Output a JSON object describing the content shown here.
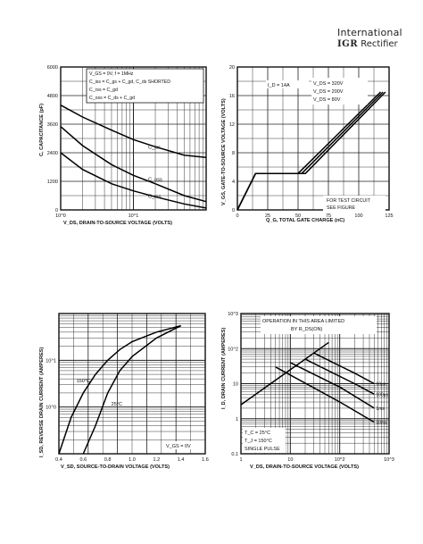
{
  "header": {
    "brand_line1": "International",
    "brand_logo": "IGR",
    "brand_line2": "Rectifier"
  },
  "chart_data": [
    {
      "type": "line",
      "ylabel": "C, CAPACITANCE (pF)",
      "xlabel": "V_DS, DRAIN-TO-SOURCE VOLTAGE (VOLTS)",
      "x_scale": "log",
      "xlim": [
        1,
        100
      ],
      "ylim": [
        0,
        6000
      ],
      "x_ticks": [
        "10^0",
        "10^1"
      ],
      "y_ticks": [
        "0",
        "1200",
        "2400",
        "3600",
        "4800",
        "6000"
      ],
      "legend": [
        "V_GS = 0V, f = 1MHz",
        "C_iss = C_gs + C_gd, C_ds SHORTED",
        "C_rss = C_gd",
        "C_oss = C_ds + C_gd"
      ],
      "series": [
        {
          "name": "C_iss",
          "x": [
            1,
            2,
            5,
            10,
            20,
            50,
            100
          ],
          "values": [
            4400,
            3900,
            3350,
            2950,
            2650,
            2300,
            2200
          ]
        },
        {
          "name": "C_oss",
          "x": [
            1,
            2,
            5,
            10,
            20,
            50,
            100
          ],
          "values": [
            3500,
            2700,
            1900,
            1450,
            1100,
            600,
            350
          ]
        },
        {
          "name": "C_rss",
          "x": [
            1,
            2,
            5,
            10,
            20,
            50,
            100
          ],
          "values": [
            2400,
            1700,
            1100,
            800,
            550,
            250,
            80
          ]
        }
      ]
    },
    {
      "type": "line",
      "ylabel": "V_GS, GATE-TO-SOURCE VOLTAGE (VOLTS)",
      "xlabel": "Q_G, TOTAL GATE CHARGE (nC)",
      "xlim": [
        0,
        125
      ],
      "ylim": [
        0,
        20
      ],
      "x_ticks": [
        "0",
        "25",
        "50",
        "75",
        "100",
        "125"
      ],
      "y_ticks": [
        "0",
        "4",
        "8",
        "12",
        "16",
        "20"
      ],
      "annotations": [
        "I_D = 14A",
        "V_DS = 320V",
        "V_DS = 200V",
        "V_DS = 80V",
        "FOR TEST CIRCUIT",
        "SEE FIGURE"
      ],
      "series": [
        {
          "name": "V_DS = 80V",
          "x": [
            0,
            15,
            50,
            118
          ],
          "values": [
            0,
            5.1,
            5.1,
            16.5
          ]
        },
        {
          "name": "V_DS = 200V",
          "x": [
            0,
            15,
            53,
            120
          ],
          "values": [
            0,
            5.1,
            5.1,
            16.5
          ]
        },
        {
          "name": "V_DS = 320V",
          "x": [
            0,
            15,
            56,
            122
          ],
          "values": [
            0,
            5.1,
            5.1,
            16.5
          ]
        }
      ]
    },
    {
      "type": "line",
      "ylabel": "I_SD, REVERSE DRAIN CURRENT (AMPERES)",
      "xlabel": "V_SD, SOURCE-TO-DRAIN VOLTAGE (VOLTS)",
      "y_scale": "log",
      "xlim": [
        0.4,
        1.6
      ],
      "ylim": [
        0.1,
        100
      ],
      "x_ticks": [
        "0.4",
        "0.6",
        "0.8",
        "1.0",
        "1.2",
        "1.4",
        "1.6"
      ],
      "y_ticks": [
        "10^0",
        "10^1"
      ],
      "annotations": [
        "150°C",
        "25°C",
        "V_GS = 0V"
      ],
      "series": [
        {
          "name": "150°C",
          "x": [
            0.4,
            0.5,
            0.6,
            0.7,
            0.8,
            0.9,
            1.0,
            1.2,
            1.4
          ],
          "values": [
            0.1,
            0.6,
            2,
            5,
            10,
            17,
            25,
            40,
            55
          ]
        },
        {
          "name": "25°C",
          "x": [
            0.6,
            0.7,
            0.8,
            0.9,
            1.0,
            1.2,
            1.4
          ],
          "values": [
            0.1,
            0.4,
            2,
            6,
            12,
            30,
            55
          ]
        }
      ]
    },
    {
      "type": "line",
      "ylabel": "I_D, DRAIN CURRENT (AMPERES)",
      "xlabel": "V_DS, DRAIN-TO-SOURCE VOLTAGE (VOLTS)",
      "x_scale": "log",
      "y_scale": "log",
      "xlim": [
        1,
        1000
      ],
      "ylim": [
        0.1,
        1000
      ],
      "x_ticks": [
        "1",
        "10",
        "10^2",
        "10^3"
      ],
      "y_ticks": [
        "0.1",
        "1",
        "10",
        "10^2",
        "10^3"
      ],
      "annotations": [
        "OPERATION IN THIS AREA LIMITED BY R_DS(ON)",
        "T_C = 25°C",
        "T_J = 150°C",
        "SINGLE PULSE"
      ],
      "series": [
        {
          "name": "R_DS(ON) limit",
          "x": [
            1,
            10,
            30,
            60
          ],
          "values": [
            2.5,
            25,
            75,
            150
          ]
        },
        {
          "name": "10µs",
          "x": [
            30,
            200,
            500
          ],
          "values": [
            75,
            20,
            10
          ]
        },
        {
          "name": "100µs",
          "x": [
            20,
            200,
            500
          ],
          "values": [
            50,
            10,
            5
          ]
        },
        {
          "name": "1ms",
          "x": [
            10,
            100,
            500
          ],
          "values": [
            40,
            8,
            2
          ]
        },
        {
          "name": "10ms",
          "x": [
            5,
            100,
            500
          ],
          "values": [
            30,
            3,
            0.8
          ]
        }
      ]
    }
  ]
}
